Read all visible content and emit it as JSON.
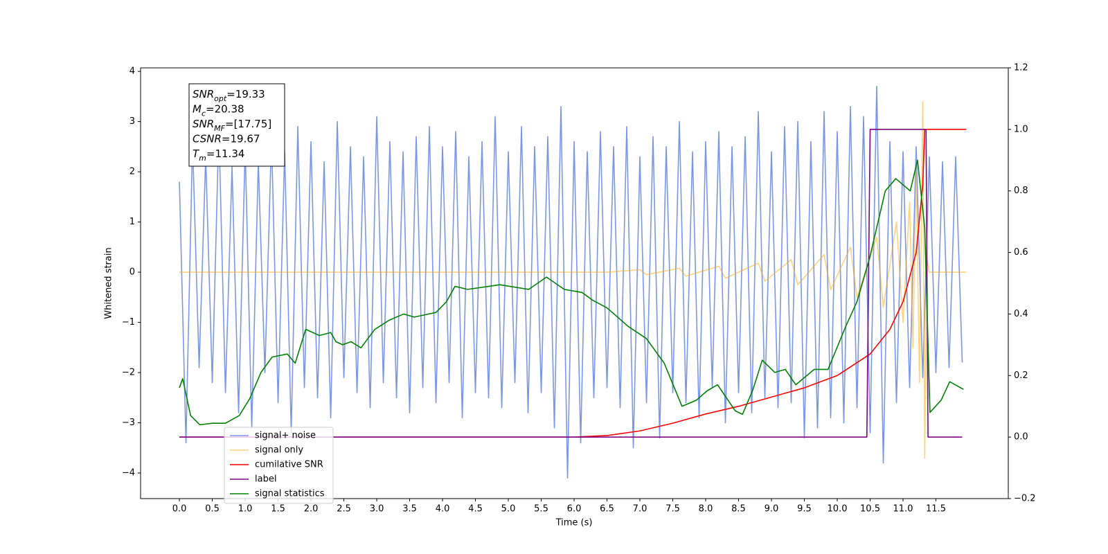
{
  "chart_data": {
    "type": "line",
    "x_label": "Time (s)",
    "y_label": "Whitened strain",
    "xlim": [
      -0.59,
      12.6
    ],
    "ylim": [
      -4.51,
      4.07
    ],
    "y2lim": [
      -0.2,
      1.2
    ],
    "xticks": [
      {
        "value": 0,
        "label": "0.0"
      },
      0.5,
      {
        "value": 1,
        "label": "1.0"
      },
      1.5,
      {
        "value": 2,
        "label": "2.0"
      },
      2.5,
      {
        "value": 3,
        "label": "3.0"
      },
      3.5,
      {
        "value": 4,
        "label": "4.0"
      },
      4.5,
      {
        "value": 5,
        "label": "5.0"
      },
      5.5,
      {
        "value": 6,
        "label": "6.0"
      },
      6.5,
      {
        "value": 7,
        "label": "7.0"
      },
      7.5,
      {
        "value": 8,
        "label": "8.0"
      },
      8.5,
      {
        "value": 9,
        "label": "9.0"
      },
      9.5,
      {
        "value": 10,
        "label": "10.0"
      },
      10.5,
      {
        "value": 11,
        "label": "11.0"
      },
      11.5
    ],
    "yticks": [
      {
        "value": -4,
        "label": "−4"
      },
      {
        "value": -3,
        "label": "−3"
      },
      {
        "value": -2,
        "label": "−2"
      },
      {
        "value": -1,
        "label": "−1"
      },
      0,
      1,
      2,
      3,
      4
    ],
    "y2ticks": [
      {
        "value": -0.2,
        "label": "−0.2"
      },
      {
        "value": 0,
        "label": "0.0"
      },
      0.2,
      0.4,
      0.6,
      0.8,
      {
        "value": 1,
        "label": "1.0"
      },
      1.2
    ],
    "annotation": [
      {
        "symbol": "SNR",
        "subscript": "opt",
        "text": "=19.33"
      },
      {
        "symbol": "M",
        "subscript": "c",
        "text": "=20.38"
      },
      {
        "symbol": "SNR",
        "subscript": "MF",
        "text": "=[17.75]"
      },
      {
        "symbol": "CSNR",
        "text": "=19.67"
      },
      {
        "symbol": "T",
        "subscript": "m",
        "text": "=11.34"
      }
    ],
    "series": [
      {
        "name": "signal+ noise",
        "color": "#4169e1",
        "axis": "y",
        "x": [
          0,
          0.1,
          0.2,
          0.3,
          0.4,
          0.5,
          0.6,
          0.7,
          0.8,
          0.9,
          1,
          1.1,
          1.2,
          1.3,
          1.4,
          1.5,
          1.6,
          1.7,
          1.8,
          1.9,
          2,
          2.1,
          2.2,
          2.3,
          2.4,
          2.5,
          2.6,
          2.7,
          2.8,
          2.9,
          3,
          3.1,
          3.2,
          3.3,
          3.4,
          3.5,
          3.6,
          3.7,
          3.8,
          3.9,
          4,
          4.1,
          4.2,
          4.3,
          4.4,
          4.5,
          4.6,
          4.7,
          4.8,
          4.9,
          5,
          5.1,
          5.2,
          5.3,
          5.4,
          5.5,
          5.6,
          5.7,
          5.8,
          5.9,
          6,
          6.1,
          6.2,
          6.3,
          6.4,
          6.5,
          6.6,
          6.7,
          6.8,
          6.9,
          7,
          7.1,
          7.2,
          7.3,
          7.4,
          7.5,
          7.6,
          7.7,
          7.8,
          7.9,
          8,
          8.1,
          8.2,
          8.3,
          8.4,
          8.5,
          8.6,
          8.7,
          8.8,
          8.9,
          9,
          9.1,
          9.2,
          9.3,
          9.4,
          9.5,
          9.6,
          9.7,
          9.8,
          9.9,
          10,
          10.1,
          10.2,
          10.3,
          10.4,
          10.5,
          10.6,
          10.7,
          10.8,
          10.9,
          11,
          11.1,
          11.2,
          11.3,
          11.4,
          11.5,
          11.6,
          11.7,
          11.8,
          11.9
        ],
        "values": [
          1.8,
          -3.4,
          2.6,
          -1.9,
          2.3,
          -2.2,
          2.9,
          -2.4,
          2.1,
          -2.8,
          2.5,
          -3.1,
          2.2,
          -2.0,
          2.7,
          -2.6,
          2.4,
          -3.2,
          2.9,
          -2.3,
          2.6,
          -2.5,
          2.2,
          -2.9,
          3.0,
          -2.1,
          2.5,
          -2.4,
          2.3,
          -2.7,
          3.1,
          -2.2,
          2.6,
          -2.5,
          2.4,
          -2.8,
          2.7,
          -2.3,
          2.9,
          -2.6,
          2.5,
          -2.2,
          2.8,
          -2.9,
          2.3,
          -2.4,
          2.6,
          -2.5,
          3.1,
          -2.7,
          2.4,
          -2.2,
          2.9,
          -2.8,
          2.5,
          -2.4,
          2.7,
          -3.1,
          3.3,
          -4.1,
          2.6,
          -3.4,
          2.4,
          -2.5,
          2.8,
          -2.3,
          2.5,
          -2.7,
          2.9,
          -3.5,
          2.3,
          -2.6,
          2.7,
          -3.3,
          2.5,
          -2.4,
          3.0,
          -2.6,
          2.4,
          -2.9,
          2.6,
          -2.3,
          2.8,
          -3.0,
          2.5,
          -2.4,
          2.7,
          -2.8,
          3.2,
          -2.5,
          2.4,
          -2.7,
          2.9,
          -2.6,
          3.0,
          -3.3,
          2.6,
          -3.1,
          3.2,
          -2.9,
          2.8,
          -3.0,
          3.3,
          -2.7,
          3.1,
          -3.2,
          3.7,
          -3.8,
          2.6,
          -2.6,
          2.4,
          -2.3,
          2.5,
          -2.1,
          2.3,
          -2.0,
          2.2,
          -1.9,
          2.3,
          -1.8
        ]
      },
      {
        "name": "signal only",
        "color": "#ffa500",
        "axis": "y",
        "x": [
          0,
          6.5,
          7.0,
          7.1,
          7.6,
          7.7,
          8.2,
          8.3,
          8.8,
          8.9,
          9.3,
          9.4,
          9.8,
          9.9,
          10.2,
          10.3,
          10.6,
          10.7,
          10.9,
          11.0,
          11.1,
          11.15,
          11.2,
          11.25,
          11.3,
          11.33,
          11.36,
          11.4,
          11.96
        ],
        "values": [
          0,
          0,
          0.05,
          -0.05,
          0.08,
          -0.08,
          0.12,
          -0.12,
          0.18,
          -0.18,
          0.25,
          -0.25,
          0.35,
          -0.35,
          0.5,
          -0.5,
          0.7,
          -0.7,
          1.0,
          -1.0,
          1.4,
          -1.5,
          2.0,
          -2.2,
          3.4,
          -3.7,
          0.3,
          0,
          0
        ]
      },
      {
        "name": "cumilative SNR",
        "color": "#ff0000",
        "axis": "y2",
        "x": [
          0,
          6.0,
          6.5,
          7.0,
          7.5,
          8.0,
          8.5,
          9.0,
          9.5,
          10.0,
          10.5,
          10.8,
          11.0,
          11.2,
          11.3,
          11.33,
          11.96
        ],
        "values": [
          0,
          0,
          0.005,
          0.02,
          0.045,
          0.075,
          0.1,
          0.13,
          0.16,
          0.2,
          0.27,
          0.35,
          0.44,
          0.6,
          0.82,
          1.0,
          1.0
        ]
      },
      {
        "name": "label",
        "color": "#800080",
        "axis": "y2",
        "x": [
          0,
          10.45,
          10.5,
          11.35,
          11.38,
          11.9
        ],
        "values": [
          0,
          0,
          1,
          1,
          0,
          0
        ]
      },
      {
        "name": "signal statistics",
        "color": "#008000",
        "axis": "y2",
        "x": [
          0,
          0.05,
          0.17,
          0.31,
          0.5,
          0.7,
          0.91,
          1.07,
          1.24,
          1.41,
          1.64,
          1.76,
          1.92,
          2.13,
          2.3,
          2.38,
          2.48,
          2.61,
          2.76,
          2.97,
          3.19,
          3.41,
          3.57,
          3.9,
          4.06,
          4.19,
          4.38,
          4.71,
          4.87,
          5.31,
          5.58,
          5.85,
          6.12,
          6.28,
          6.5,
          6.82,
          7.1,
          7.37,
          7.64,
          7.86,
          8.02,
          8.18,
          8.45,
          8.56,
          8.72,
          8.86,
          9.05,
          9.21,
          9.37,
          9.65,
          9.86,
          10.13,
          10.3,
          10.49,
          10.73,
          10.89,
          11.11,
          11.22,
          11.33,
          11.41,
          11.58,
          11.71,
          11.92
        ],
        "values": [
          0.16,
          0.19,
          0.07,
          0.04,
          0.045,
          0.045,
          0.07,
          0.125,
          0.21,
          0.26,
          0.27,
          0.24,
          0.35,
          0.33,
          0.34,
          0.31,
          0.3,
          0.31,
          0.29,
          0.35,
          0.38,
          0.4,
          0.39,
          0.405,
          0.44,
          0.49,
          0.48,
          0.49,
          0.495,
          0.48,
          0.52,
          0.48,
          0.47,
          0.445,
          0.42,
          0.36,
          0.32,
          0.24,
          0.1,
          0.12,
          0.15,
          0.17,
          0.085,
          0.074,
          0.155,
          0.25,
          0.21,
          0.22,
          0.17,
          0.22,
          0.22,
          0.36,
          0.44,
          0.58,
          0.8,
          0.84,
          0.8,
          0.9,
          0.68,
          0.08,
          0.12,
          0.18,
          0.155
        ]
      }
    ]
  }
}
